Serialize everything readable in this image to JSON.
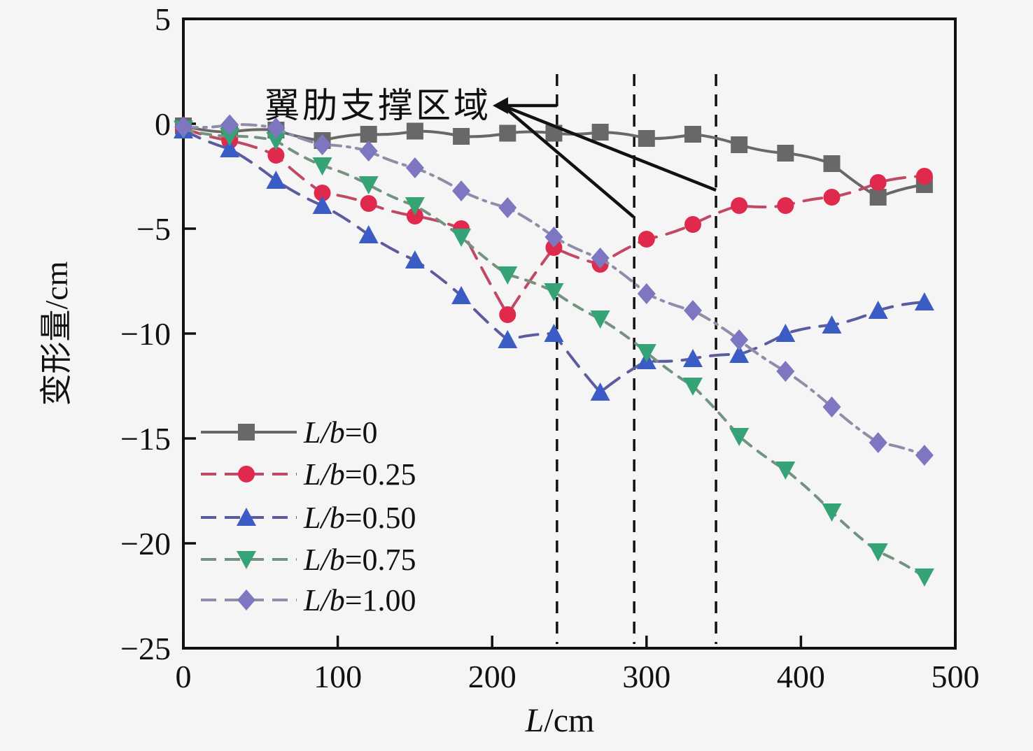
{
  "chart_data": {
    "type": "line",
    "title": "",
    "xlabel": "L/cm",
    "ylabel": "变形量/cm",
    "xlim": [
      0,
      500
    ],
    "ylim": [
      -25,
      5
    ],
    "xticks": [
      0,
      100,
      200,
      300,
      400,
      500
    ],
    "yticks": [
      5,
      0,
      -5,
      -10,
      -15,
      -20,
      -25
    ],
    "grid": false,
    "legend_position": "lower-left",
    "x": [
      0,
      30,
      60,
      90,
      120,
      150,
      180,
      210,
      240,
      270,
      300,
      330,
      360,
      390,
      420,
      450,
      480
    ],
    "series": [
      {
        "name": "L/b=0",
        "marker": "square",
        "marker_color": "#686868",
        "line_color": "#686868",
        "line_style": "solid",
        "values": [
          -0.1,
          -0.4,
          -0.3,
          -0.8,
          -0.5,
          -0.35,
          -0.6,
          -0.45,
          -0.45,
          -0.4,
          -0.7,
          -0.5,
          -1.0,
          -1.4,
          -1.9,
          -3.5,
          -2.9
        ]
      },
      {
        "name": "L/b=0.25",
        "marker": "circle",
        "marker_color": "#e02a4d",
        "line_color": "#c04a64",
        "line_style": "dashed",
        "values": [
          -0.2,
          -0.8,
          -1.5,
          -3.3,
          -3.8,
          -4.4,
          -5.0,
          -9.1,
          -5.9,
          -6.7,
          -5.5,
          -4.8,
          -3.9,
          -3.9,
          -3.5,
          -2.8,
          -2.5
        ]
      },
      {
        "name": "L/b=0.50",
        "marker": "triangle-up",
        "marker_color": "#3c5cc5",
        "line_color": "#5b5ca0",
        "line_style": "dashed",
        "values": [
          -0.3,
          -1.2,
          -2.7,
          -3.9,
          -5.3,
          -6.5,
          -8.2,
          -10.3,
          -10.0,
          -12.8,
          -11.3,
          -11.2,
          -11.0,
          -10.0,
          -9.6,
          -8.9,
          -8.5
        ]
      },
      {
        "name": "L/b=0.75",
        "marker": "triangle-down",
        "marker_color": "#36a376",
        "line_color": "#74937f",
        "line_style": "short-dash",
        "values": [
          -0.25,
          -0.6,
          -0.8,
          -2.0,
          -2.9,
          -3.9,
          -5.4,
          -7.2,
          -8.0,
          -9.3,
          -10.9,
          -12.5,
          -14.9,
          -16.5,
          -18.5,
          -20.4,
          -21.6
        ]
      },
      {
        "name": "L/b=1.00",
        "marker": "diamond",
        "marker_color": "#7d76c1",
        "line_color": "#908da9",
        "line_style": "dash-dot",
        "values": [
          -0.15,
          -0.05,
          -0.2,
          -1.0,
          -1.3,
          -2.1,
          -3.2,
          -4.0,
          -5.4,
          -6.4,
          -8.1,
          -8.9,
          -10.3,
          -11.8,
          -13.5,
          -15.2,
          -15.8
        ]
      }
    ],
    "support_region": {
      "annotation_text": "翼肋支撑区域",
      "dashed_vlines_x": [
        242,
        292,
        345
      ],
      "line_color": "#111111"
    }
  },
  "colors": {
    "background": "#f5f5f5",
    "axis": "#111111"
  }
}
